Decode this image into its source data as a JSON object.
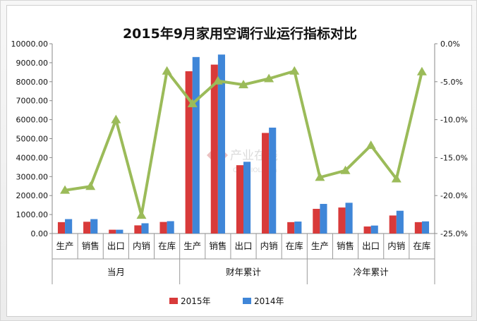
{
  "chart_data": {
    "type": "bar",
    "title": "2015年9月家用空调行业运行指标对比",
    "groups": [
      "当月",
      "财年累计",
      "冷年累计"
    ],
    "categories": [
      "生产",
      "销售",
      "出口",
      "内销",
      "在库",
      "生产",
      "销售",
      "出口",
      "内销",
      "在库",
      "生产",
      "销售",
      "出口",
      "内销",
      "在库"
    ],
    "series": [
      {
        "name": "2015年",
        "color": "#d83a3a",
        "values": [
          600,
          620,
          200,
          430,
          610,
          8550,
          8900,
          3600,
          5300,
          600,
          1300,
          1370,
          370,
          950,
          600
        ]
      },
      {
        "name": "2014年",
        "color": "#3f86d8",
        "values": [
          760,
          760,
          200,
          540,
          650,
          9300,
          9430,
          3780,
          5580,
          630,
          1560,
          1620,
          420,
          1200,
          640
        ]
      }
    ],
    "line": {
      "color": "#9bbb59",
      "values": [
        -19.3,
        -18.8,
        -10.0,
        -22.6,
        -3.6,
        -7.9,
        -4.9,
        -5.4,
        -4.6,
        -3.6,
        -17.6,
        -16.7,
        -13.4,
        -17.8,
        -3.7
      ]
    },
    "ylim_left": [
      0,
      10000
    ],
    "yticks_left": [
      "0.00",
      "1000.00",
      "2000.00",
      "3000.00",
      "4000.00",
      "5000.00",
      "6000.00",
      "7000.00",
      "8000.00",
      "9000.00",
      "10000.00"
    ],
    "ylim_right": [
      -25,
      0
    ],
    "yticks_right": [
      "-25.0%",
      "-20.0%",
      "-15.0%",
      "-10.0%",
      "-5.0%",
      "0.0%"
    ],
    "legend": {
      "position": "bottom"
    },
    "watermark": {
      "text": "产业在线",
      "subtext": "ChinaIOL.com"
    }
  }
}
